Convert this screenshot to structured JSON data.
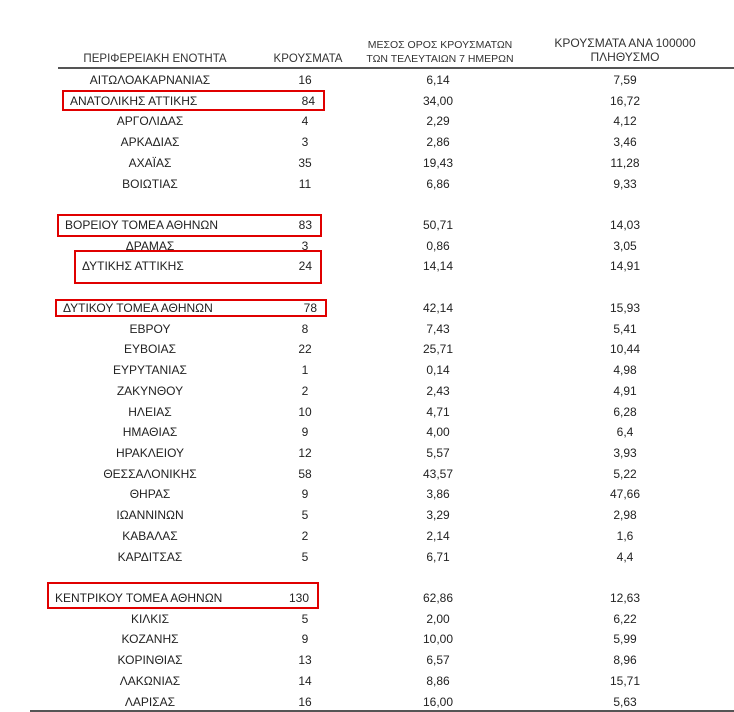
{
  "header": {
    "region": "ΠΕΡΙΦΕΡΕΙΑΚΗ ΕΝΟΤΗΤΑ",
    "cases": "ΚΡΟΥΣΜΑΤΑ",
    "avg_line1": "ΜΕΣΟΣ ΟΡΟΣ ΚΡΟΥΣΜΑΤΩΝ",
    "avg_line2": "ΤΩΝ ΤΕΛΕΥΤΑΙΩΝ 7 ΗΜΕΡΩΝ",
    "per_line1": "ΚΡΟΥΣΜΑΤΑ ΑΝΑ 100000",
    "per_line2": "ΠΛΗΘΥΣΜΟ"
  },
  "highlight_color": "#e00000",
  "groups": [
    [
      {
        "name": "ΑΙΤΩΛΟΑΚΑΡΝΑΝΙΑΣ",
        "cases": "16",
        "avg": "6,14",
        "per": "7,59"
      },
      {
        "name": "ΑΝΑΤΟΛΙΚΗΣ ΑΤΤΙΚΗΣ",
        "cases": "84",
        "avg": "34,00",
        "per": "16,72",
        "highlighted": true
      },
      {
        "name": "ΑΡΓΟΛΙΔΑΣ",
        "cases": "4",
        "avg": "2,29",
        "per": "4,12"
      },
      {
        "name": "ΑΡΚΑΔΙΑΣ",
        "cases": "3",
        "avg": "2,86",
        "per": "3,46"
      },
      {
        "name": "ΑΧΑΪΑΣ",
        "cases": "35",
        "avg": "19,43",
        "per": "11,28"
      },
      {
        "name": "ΒΟΙΩΤΙΑΣ",
        "cases": "11",
        "avg": "6,86",
        "per": "9,33"
      }
    ],
    [
      {
        "name": "ΒΟΡΕΙΟΥ ΤΟΜΕΑ ΑΘΗΝΩΝ",
        "cases": "83",
        "avg": "50,71",
        "per": "14,03",
        "highlighted": true
      },
      {
        "name": "ΔΡΑΜΑΣ",
        "cases": "3",
        "avg": "0,86",
        "per": "3,05"
      },
      {
        "name": "ΔΥΤΙΚΗΣ ΑΤΤΙΚΗΣ",
        "cases": "24",
        "avg": "14,14",
        "per": "14,91",
        "highlighted": true
      }
    ],
    [
      {
        "name": "ΔΥΤΙΚΟΥ ΤΟΜΕΑ ΑΘΗΝΩΝ",
        "cases": "78",
        "avg": "42,14",
        "per": "15,93",
        "highlighted": true
      },
      {
        "name": "ΕΒΡΟΥ",
        "cases": "8",
        "avg": "7,43",
        "per": "5,41"
      },
      {
        "name": "ΕΥΒΟΙΑΣ",
        "cases": "22",
        "avg": "25,71",
        "per": "10,44"
      },
      {
        "name": "ΕΥΡΥΤΑΝΙΑΣ",
        "cases": "1",
        "avg": "0,14",
        "per": "4,98"
      },
      {
        "name": "ΖΑΚΥΝΘΟΥ",
        "cases": "2",
        "avg": "2,43",
        "per": "4,91"
      },
      {
        "name": "ΗΛΕΙΑΣ",
        "cases": "10",
        "avg": "4,71",
        "per": "6,28"
      },
      {
        "name": "ΗΜΑΘΙΑΣ",
        "cases": "9",
        "avg": "4,00",
        "per": "6,4"
      },
      {
        "name": "ΗΡΑΚΛΕΙΟΥ",
        "cases": "12",
        "avg": "5,57",
        "per": "3,93"
      },
      {
        "name": "ΘΕΣΣΑΛΟΝΙΚΗΣ",
        "cases": "58",
        "avg": "43,57",
        "per": "5,22"
      },
      {
        "name": "ΘΗΡΑΣ",
        "cases": "9",
        "avg": "3,86",
        "per": "47,66"
      },
      {
        "name": "ΙΩΑΝΝΙΝΩΝ",
        "cases": "5",
        "avg": "3,29",
        "per": "2,98"
      },
      {
        "name": "ΚΑΒΑΛΑΣ",
        "cases": "2",
        "avg": "2,14",
        "per": "1,6"
      },
      {
        "name": "ΚΑΡΔΙΤΣΑΣ",
        "cases": "5",
        "avg": "6,71",
        "per": "4,4"
      }
    ],
    [
      {
        "name": "ΚΕΝΤΡΙΚΟΥ ΤΟΜΕΑ ΑΘΗΝΩΝ",
        "cases": "130",
        "avg": "62,86",
        "per": "12,63",
        "highlighted": true
      },
      {
        "name": "ΚΙΛΚΙΣ",
        "cases": "5",
        "avg": "2,00",
        "per": "6,22"
      },
      {
        "name": "ΚΟΖΑΝΗΣ",
        "cases": "9",
        "avg": "10,00",
        "per": "5,99"
      },
      {
        "name": "ΚΟΡΙΝΘΙΑΣ",
        "cases": "13",
        "avg": "6,57",
        "per": "8,96"
      },
      {
        "name": "ΛΑΚΩΝΙΑΣ",
        "cases": "14",
        "avg": "8,86",
        "per": "15,71"
      },
      {
        "name": "ΛΑΡΙΣΑΣ",
        "cases": "16",
        "avg": "16,00",
        "per": "5,63"
      }
    ]
  ]
}
